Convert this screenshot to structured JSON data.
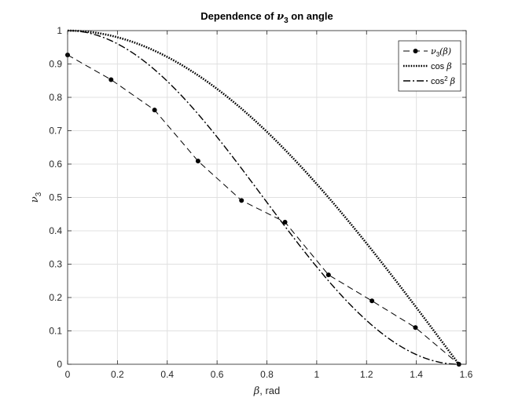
{
  "chart_data": {
    "type": "line",
    "title": {
      "prefix": "Dependence of ",
      "symbol": "ν",
      "subscript": "3",
      "suffix": " on angle"
    },
    "xlabel": {
      "symbol": "β",
      "text": ", rad"
    },
    "ylabel": {
      "symbol": "ν",
      "subscript": "3"
    },
    "xlim": [
      0,
      1.6
    ],
    "ylim": [
      0,
      1
    ],
    "x_ticks": [
      0,
      0.2,
      0.4,
      0.6,
      0.8,
      1,
      1.2,
      1.4,
      1.6
    ],
    "x_tick_labels": [
      "0",
      "0.2",
      "0.4",
      "0.6",
      "0.8",
      "1",
      "1.2",
      "1.4",
      "1.6"
    ],
    "y_ticks": [
      0,
      0.1,
      0.2,
      0.3,
      0.4,
      0.5,
      0.6,
      0.7,
      0.8,
      0.9,
      1
    ],
    "y_tick_labels": [
      "0",
      "0.1",
      "0.2",
      "0.3",
      "0.4",
      "0.5",
      "0.6",
      "0.7",
      "0.8",
      "0.9",
      "1"
    ],
    "grid": true,
    "legend_position": "top-right",
    "series": [
      {
        "legend": {
          "symbol": "ν",
          "subscript": "3",
          "args": "(β)"
        },
        "style": "dashed-with-dots",
        "color": "#000000",
        "x": [
          0,
          0.1745,
          0.3491,
          0.5236,
          0.6981,
          0.8727,
          1.0472,
          1.2217,
          1.3963,
          1.5708
        ],
        "y": [
          0.927,
          0.853,
          0.762,
          0.609,
          0.491,
          0.426,
          0.268,
          0.19,
          0.11,
          0.0
        ]
      },
      {
        "legend": {
          "text": "cos ",
          "symbol": "β"
        },
        "style": "dotted",
        "color": "#000000",
        "function": "cos",
        "x_range": [
          0,
          1.5708
        ]
      },
      {
        "legend": {
          "text": "cos",
          "superscript": "2",
          "symbol": "β"
        },
        "style": "dash-dot",
        "color": "#000000",
        "function": "cos2",
        "x_range": [
          0,
          1.5708
        ]
      }
    ]
  }
}
